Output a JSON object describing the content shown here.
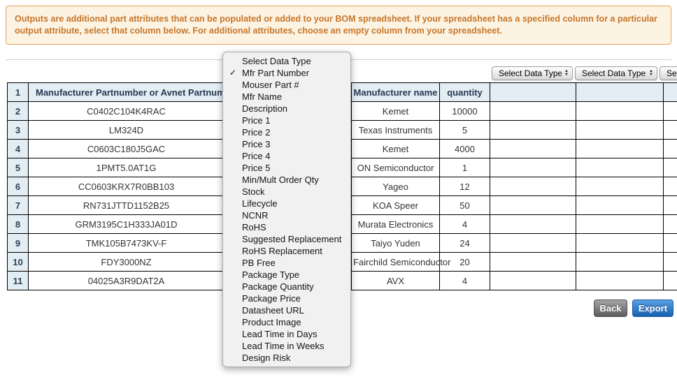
{
  "notice": {
    "text": "Outputs are additional part attributes that can be populated or added to your BOM spreadsheet. If your spreadsheet has a specified column for a particular output attribute, select that column below. For additional attributes, choose an empty column from your spreadsheet."
  },
  "column_selects": {
    "placeholder": "Select Data Type"
  },
  "dropdown_menu": {
    "selected": "Mfr Part Number",
    "checkmark_glyph": "✓",
    "items": [
      "Select Data Type",
      "Mfr Part Number",
      "Mouser Part #",
      "Mfr Name",
      "Description",
      "Price 1",
      "Price 2",
      "Price 3",
      "Price 4",
      "Price 5",
      "Min/Mult Order Qty",
      "Stock",
      "Lifecycle",
      "NCNR",
      "RoHS",
      "Suggested Replacement",
      "RoHS Replacement",
      "PB Free",
      "Package Type",
      "Package Quantity",
      "Package Price",
      "Datasheet URL",
      "Product Image",
      "Lead Time in Days",
      "Lead Time in Weeks",
      "Design Risk"
    ]
  },
  "table": {
    "header_row_num": "1",
    "columns": {
      "part": "Manufacturer Partnumber or Avnet Partnumber",
      "manufacturer": "Manufacturer name",
      "quantity": "quantity"
    },
    "rows": [
      {
        "num": "2",
        "part": "C0402C104K4RAC",
        "manufacturer": "Kemet",
        "quantity": "10000"
      },
      {
        "num": "3",
        "part": "LM324D",
        "manufacturer": "Texas Instruments",
        "quantity": "5"
      },
      {
        "num": "4",
        "part": "C0603C180J5GAC",
        "manufacturer": "Kemet",
        "quantity": "4000"
      },
      {
        "num": "5",
        "part": "1PMT5.0AT1G",
        "manufacturer": "ON Semiconductor",
        "quantity": "1"
      },
      {
        "num": "6",
        "part": "CC0603KRX7R0BB103",
        "manufacturer": "Yageo",
        "quantity": "12"
      },
      {
        "num": "7",
        "part": "RN731JTTD1152B25",
        "manufacturer": "KOA Speer",
        "quantity": "50"
      },
      {
        "num": "8",
        "part": "GRM3195C1H333JA01D",
        "manufacturer": "Murata Electronics",
        "quantity": "4"
      },
      {
        "num": "9",
        "part": "TMK105B7473KV-F",
        "manufacturer": "Taiyo Yuden",
        "quantity": "24"
      },
      {
        "num": "10",
        "part": "FDY3000NZ",
        "manufacturer": "Fairchild Semiconductor",
        "quantity": "20"
      },
      {
        "num": "11",
        "part": "04025A3R9DAT2A",
        "manufacturer": "AVX",
        "quantity": "4"
      }
    ]
  },
  "buttons": {
    "back": "Back",
    "export": "Export"
  },
  "colors": {
    "notice_bg": "#fcf3e3",
    "notice_border": "#e3a65a",
    "notice_text": "#c8762a",
    "table_header_bg": "#e3edf4",
    "export_blue": "#1660ae",
    "back_gray": "#5b5b5b"
  }
}
